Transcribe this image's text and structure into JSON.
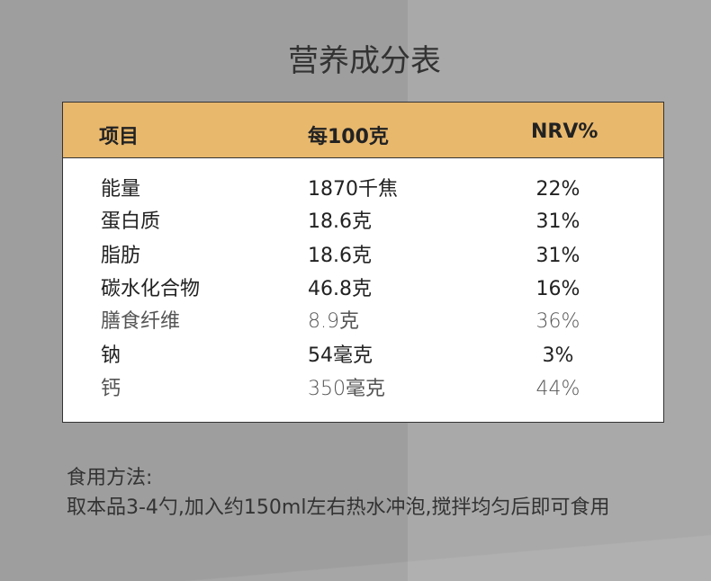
{
  "title": "营养成分表",
  "table": {
    "headers": [
      "项目",
      "每100克",
      "NRV%"
    ],
    "header_color": "#e8b86d",
    "rows": [
      {
        "name": "能量",
        "value": "1870千焦",
        "nrv": "22%",
        "emphasis": "bold"
      },
      {
        "name": "蛋白质",
        "value": "18.6克",
        "nrv": "31%",
        "emphasis": "bold"
      },
      {
        "name": "脂肪",
        "value": "18.6克",
        "nrv": "31%",
        "emphasis": "bold"
      },
      {
        "name": "碳水化合物",
        "value": "46.8克",
        "nrv": "16%",
        "emphasis": "bold"
      },
      {
        "name": "膳食纤维",
        "value": "8.9克",
        "nrv": "36%",
        "emphasis": "light"
      },
      {
        "name": "钠",
        "value": "54毫克",
        "nrv": "3%",
        "emphasis": "bold"
      },
      {
        "name": "钙",
        "value": "350毫克",
        "nrv": "44%",
        "emphasis": "light"
      }
    ]
  },
  "usage": {
    "label": "食用方法:",
    "text": "取本品3-4勺,加入约150ml左右热水冲泡,搅拌均匀后即可食用"
  }
}
